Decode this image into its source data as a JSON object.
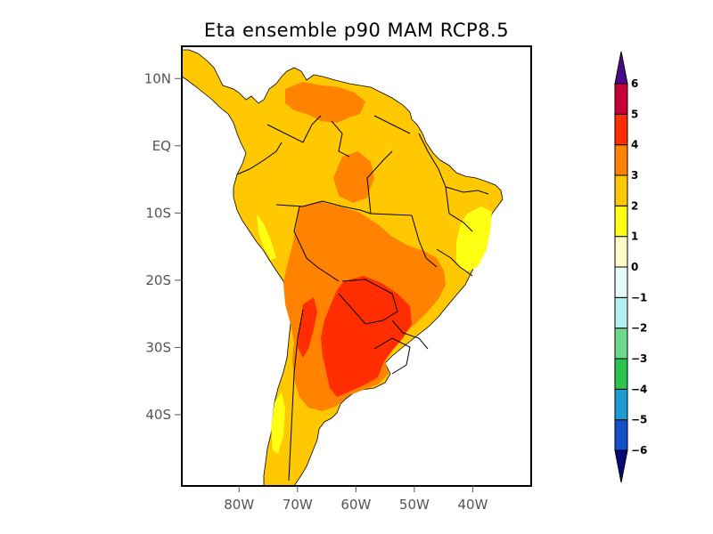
{
  "title": "Eta ensemble p90 MAM RCP8.5",
  "map": {
    "region": "South America",
    "lon_range": [
      -89.8,
      -30.0
    ],
    "lat_range": [
      -50.6,
      14.8
    ],
    "lon_ticks": [
      {
        "value": -80,
        "label": "80W"
      },
      {
        "value": -70,
        "label": "70W"
      },
      {
        "value": -60,
        "label": "60W"
      },
      {
        "value": -50,
        "label": "50W"
      },
      {
        "value": -40,
        "label": "40W"
      }
    ],
    "lat_ticks": [
      {
        "value": 10,
        "label": "10N"
      },
      {
        "value": 0,
        "label": "EQ"
      },
      {
        "value": -10,
        "label": "10S"
      },
      {
        "value": -20,
        "label": "20S"
      },
      {
        "value": -30,
        "label": "30S"
      },
      {
        "value": -40,
        "label": "40S"
      }
    ],
    "field_summary": [
      {
        "area": "Central Argentina / Paraguay / Chaco",
        "level_range": "4 to 5"
      },
      {
        "area": "Bolivia / Mato Grosso / Venezuelan interior",
        "level_range": "3 to 4"
      },
      {
        "area": "Amazon / northern continent / Patagonia",
        "level_range": "2 to 3"
      },
      {
        "area": "Eastern Brazil coast / Pacific coast strips",
        "level_range": "1 to 2"
      }
    ]
  },
  "colorbar": {
    "levels": [
      -6,
      -5,
      -4,
      -3,
      -2,
      -1,
      0,
      1,
      2,
      3,
      4,
      5,
      6
    ],
    "labels": [
      "−6",
      "−5",
      "−4",
      "−3",
      "−2",
      "−1",
      "0",
      "1",
      "2",
      "3",
      "4",
      "5",
      "6"
    ],
    "below_color": "#0a0a78",
    "above_color": "#4b0a8c",
    "colors": [
      "#1550c8",
      "#1e9bd2",
      "#2dc350",
      "#6ed98c",
      "#b4eef0",
      "#e6fafa",
      "#fffac8",
      "#ffff14",
      "#ffc800",
      "#ff8200",
      "#ff2d00",
      "#c80037"
    ]
  },
  "chart_data": {
    "type": "heatmap",
    "title": "Eta ensemble p90 MAM RCP8.5",
    "xlabel": "",
    "ylabel": "",
    "x_tick_labels": [
      "80W",
      "70W",
      "60W",
      "50W",
      "40W"
    ],
    "y_tick_labels": [
      "10N",
      "EQ",
      "10S",
      "20S",
      "30S",
      "40S"
    ],
    "xlim": [
      -89.8,
      -30.0
    ],
    "ylim": [
      -50.6,
      14.8
    ],
    "colorbar_levels": [
      -6,
      -5,
      -4,
      -3,
      -2,
      -1,
      0,
      1,
      2,
      3,
      4,
      5,
      6
    ],
    "legend_position": "right",
    "grid": false
  }
}
